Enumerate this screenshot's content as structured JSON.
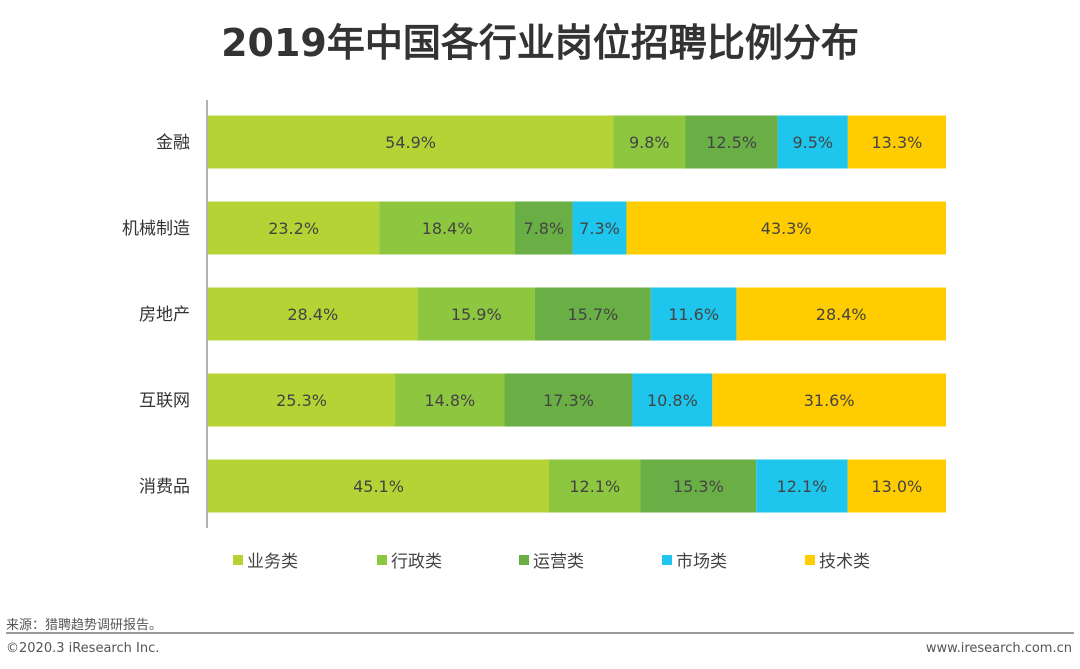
{
  "title": "2019年中国各行业岗位招聘比例分布",
  "chart_data": {
    "type": "bar",
    "orientation": "horizontal-stacked-100",
    "title": "2019年中国各行业岗位招聘比例分布",
    "categories": [
      "金融",
      "机械制造",
      "房地产",
      "互联网",
      "消费品"
    ],
    "series": [
      {
        "name": "业务类",
        "color": "#b5d334",
        "values": [
          54.9,
          23.2,
          28.4,
          25.3,
          45.1
        ]
      },
      {
        "name": "行政类",
        "color": "#8dc63f",
        "values": [
          9.8,
          18.4,
          15.9,
          14.8,
          12.1
        ]
      },
      {
        "name": "运营类",
        "color": "#6aaf46",
        "values": [
          12.5,
          7.8,
          15.7,
          17.3,
          15.3
        ]
      },
      {
        "name": "市场类",
        "color": "#1ec5ec",
        "values": [
          9.5,
          7.3,
          11.6,
          10.8,
          12.1
        ]
      },
      {
        "name": "技术类",
        "color": "#ffcc00",
        "values": [
          13.3,
          43.3,
          28.4,
          31.6,
          13.0
        ]
      }
    ],
    "value_suffix": "%",
    "legend": "bottom"
  },
  "footer": {
    "source": "来源：猎聘趋势调研报告。",
    "copyright": "©2020.3 iResearch Inc.",
    "url": "www.iresearch.com.cn"
  }
}
